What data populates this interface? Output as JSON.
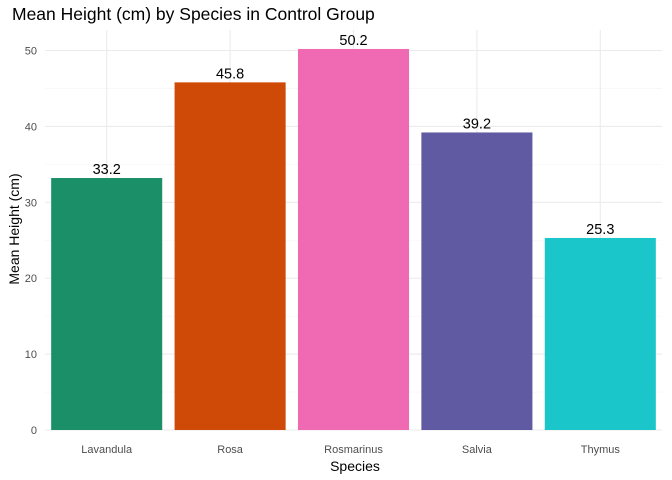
{
  "chart_data": {
    "type": "bar",
    "title": "Mean Height (cm) by Species in Control Group",
    "xlabel": "Species",
    "ylabel": "Mean Height (cm)",
    "categories": [
      "Lavandula",
      "Rosa",
      "Rosmarinus",
      "Salvia",
      "Thymus"
    ],
    "values": [
      33.2,
      45.8,
      50.2,
      39.2,
      25.3
    ],
    "value_labels": [
      "33.2",
      "45.8",
      "50.2",
      "39.2",
      "25.3"
    ],
    "colors": [
      "#1b9068",
      "#cf4a06",
      "#ef69b3",
      "#605aa3",
      "#1ac6c9"
    ],
    "ylim": [
      0,
      52.7
    ],
    "y_ticks": [
      0,
      10,
      20,
      30,
      40,
      50
    ],
    "grid": true,
    "legend": "none"
  }
}
